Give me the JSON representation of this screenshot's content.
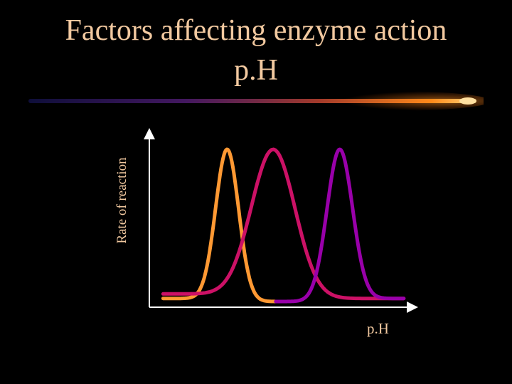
{
  "slide": {
    "title_line1": "Factors affecting enzyme action",
    "title_line2": "p.H",
    "background": "#000000",
    "text_color": "#f2c9a0"
  },
  "chart_data": {
    "type": "line",
    "ylabel": "Rate of reaction",
    "xlabel": "p.H",
    "axis_color": "#ffffff",
    "curves": [
      {
        "color": "#ff9933",
        "peak": 0.29,
        "width": 0.045,
        "floor_left": 0.02,
        "floor_right": 0.0
      },
      {
        "color": "#cc1166",
        "peak": 0.47,
        "width": 0.085,
        "floor_left": 0.05,
        "floor_right": 0.02
      },
      {
        "color": "#9900aa",
        "peak": 0.73,
        "width": 0.05,
        "floor_left": 0.0,
        "floor_right": 0.02
      }
    ]
  }
}
